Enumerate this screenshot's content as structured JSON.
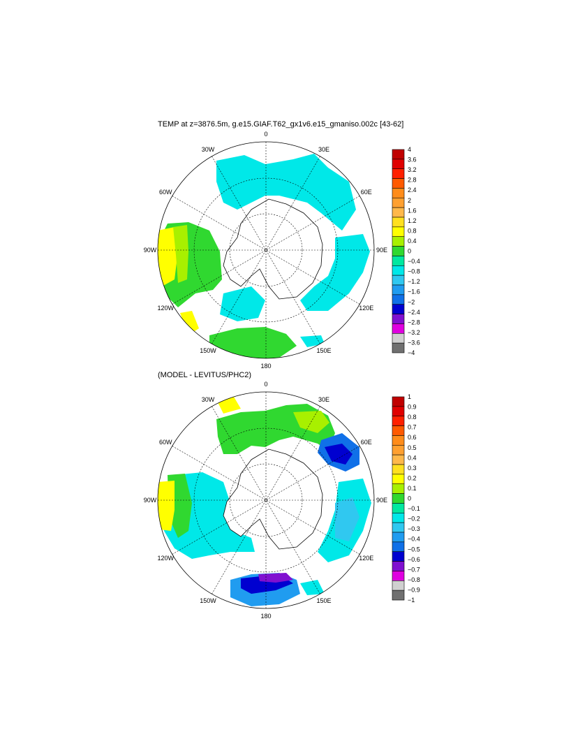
{
  "panels": [
    {
      "title": "TEMP at z=3876.5m, g.e15.GIAF.T62_gx1v6.e15_gmaniso.002c [43-62]",
      "lon_labels": [
        "0",
        "30E",
        "60E",
        "90E",
        "120E",
        "150E",
        "180",
        "150W",
        "120W",
        "90W",
        "60W",
        "30W"
      ],
      "colorbar_labels": [
        "4",
        "3.6",
        "3.2",
        "2.8",
        "2.4",
        "2",
        "1.6",
        "1.2",
        "0.8",
        "0.4",
        "0",
        "−0.4",
        "−0.8",
        "−1.2",
        "−1.6",
        "−2",
        "−2.4",
        "−2.8",
        "−3.2",
        "−3.6",
        "−4"
      ]
    },
    {
      "title": "(MODEL - LEVITUS/PHC2)",
      "lon_labels": [
        "0",
        "30E",
        "60E",
        "90E",
        "120E",
        "150E",
        "180",
        "150W",
        "120W",
        "90W",
        "60W",
        "30W"
      ],
      "colorbar_labels": [
        "1",
        "0.9",
        "0.8",
        "0.7",
        "0.6",
        "0.5",
        "0.4",
        "0.3",
        "0.2",
        "0.1",
        "0",
        "−0.1",
        "−0.2",
        "−0.3",
        "−0.4",
        "−0.5",
        "−0.6",
        "−0.7",
        "−0.8",
        "−0.9",
        "−1"
      ]
    }
  ],
  "colors": [
    "#c00000",
    "#e00000",
    "#ff2000",
    "#ff5a00",
    "#ff8c1a",
    "#ffa030",
    "#ffb84a",
    "#ffe020",
    "#ffff00",
    "#a8f000",
    "#30d830",
    "#00e8a0",
    "#00e8e8",
    "#30c8f0",
    "#209cf0",
    "#1070e8",
    "#0000d0",
    "#8010d0",
    "#e000e0",
    "#d0d0d0",
    "#707070"
  ]
}
